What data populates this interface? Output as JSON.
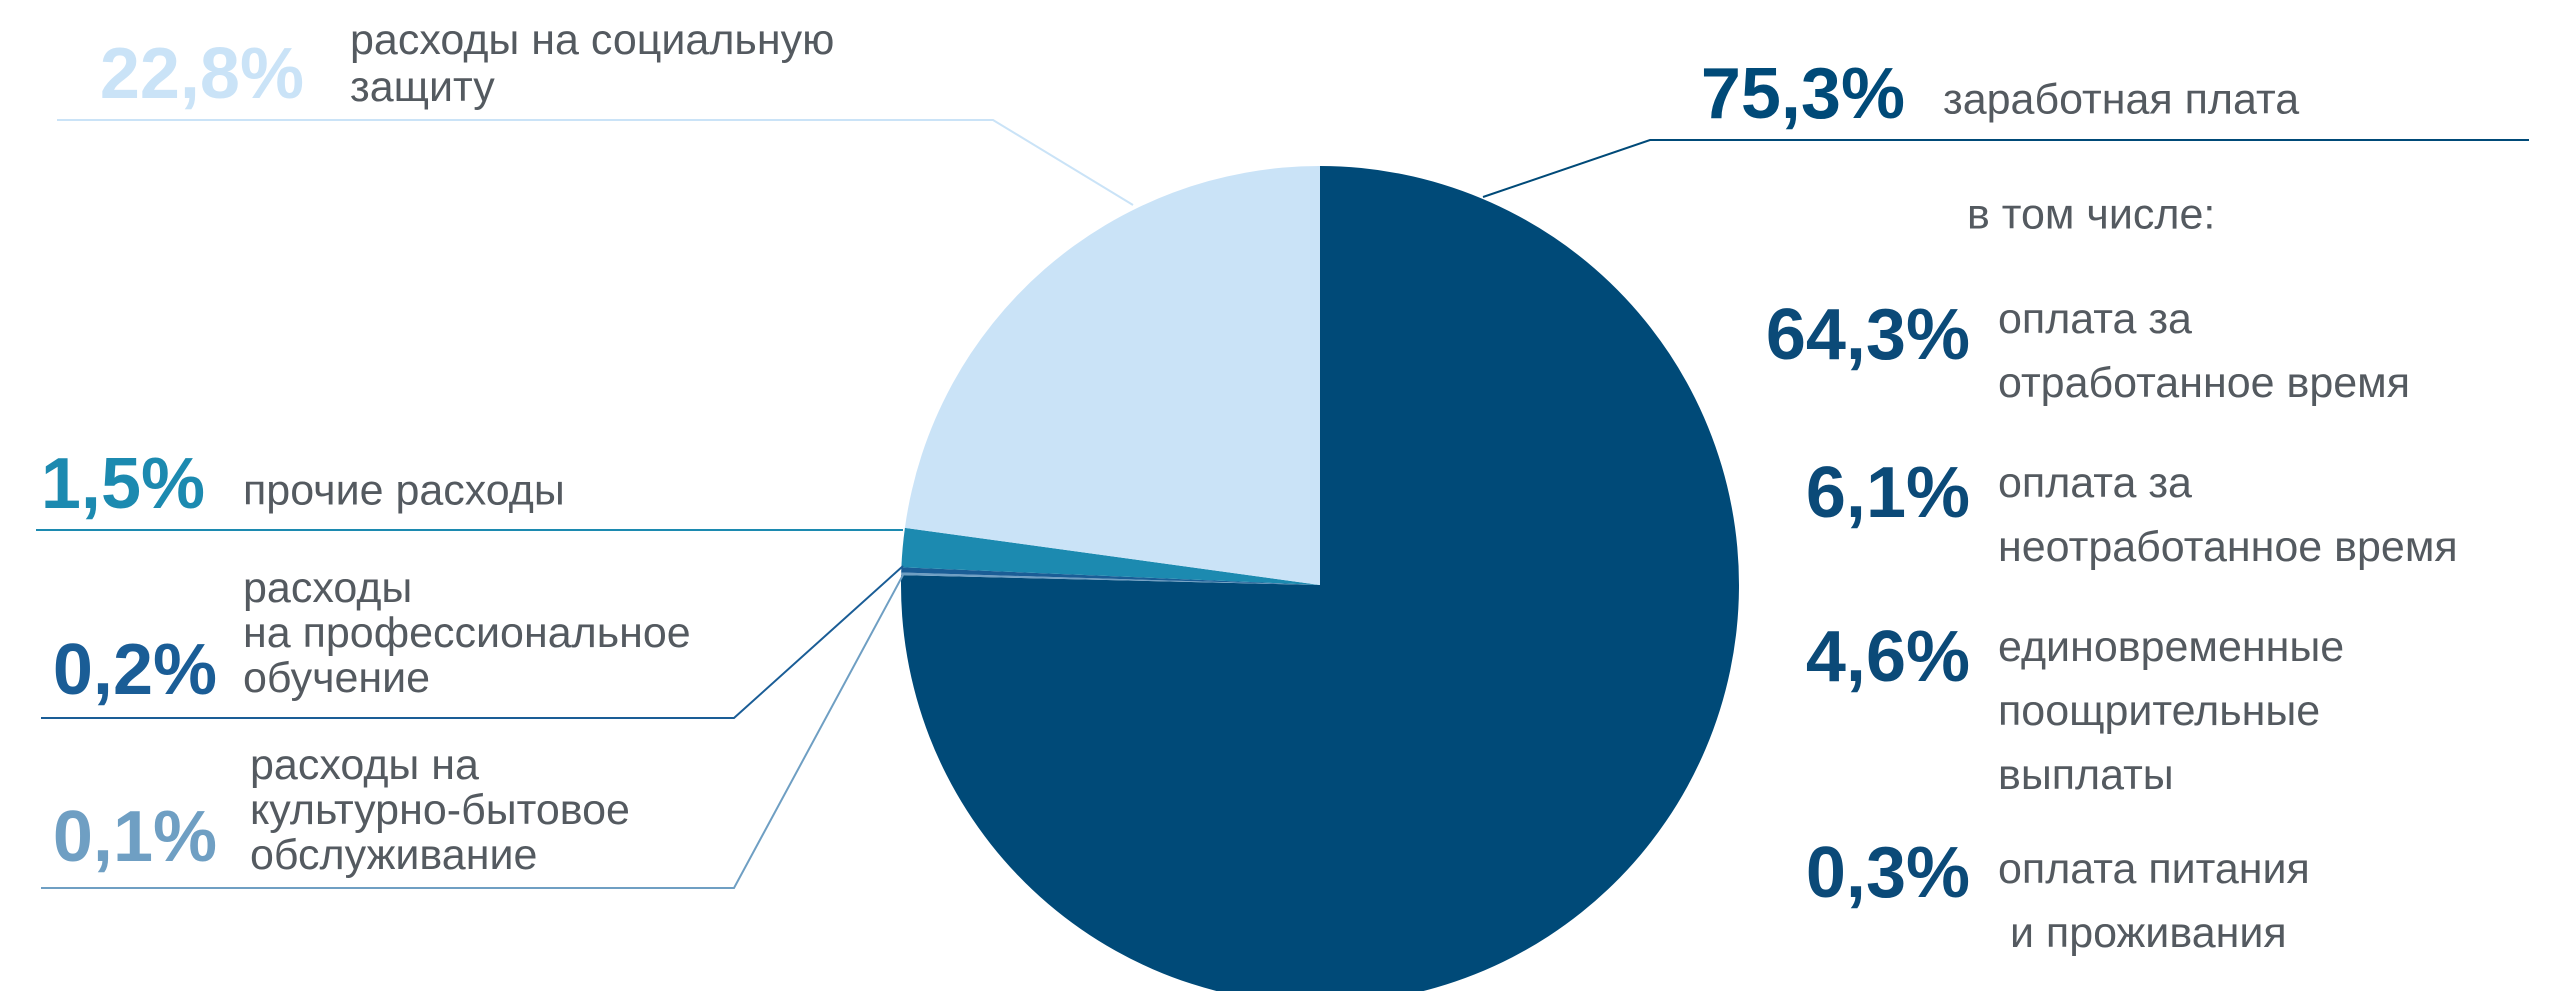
{
  "chart_data": {
    "type": "pie",
    "categories": [
      "заработная плата",
      "расходы на\nкультурно-бытовое\nобслуживание",
      "расходы\nна профессиональное\nобучение",
      "прочие расходы",
      "расходы на социальную\nзащиту"
    ],
    "values": [
      75.3,
      0.1,
      0.2,
      1.5,
      22.8
    ],
    "value_labels": [
      "75,3%",
      "0,1%",
      "0,2%",
      "1,5%",
      "22,8%"
    ],
    "colors": [
      "#004a78",
      "#6f9fc3",
      "#1a5d96",
      "#1c8ab0",
      "#cae3f7"
    ],
    "breakdown_heading": "в том числе:",
    "breakdown": {
      "categories": [
        "оплата за\nотработанное время",
        "оплата за\nнеотработанное время",
        "единовременные\nпоощрительные\nвыплаты",
        "оплата питания\n и проживания"
      ],
      "values": [
        64.3,
        6.1,
        4.6,
        0.3
      ],
      "value_labels": [
        "64,3%",
        "6,1%",
        "4,6%",
        "0,3%"
      ],
      "color": "#0b4a78"
    }
  }
}
